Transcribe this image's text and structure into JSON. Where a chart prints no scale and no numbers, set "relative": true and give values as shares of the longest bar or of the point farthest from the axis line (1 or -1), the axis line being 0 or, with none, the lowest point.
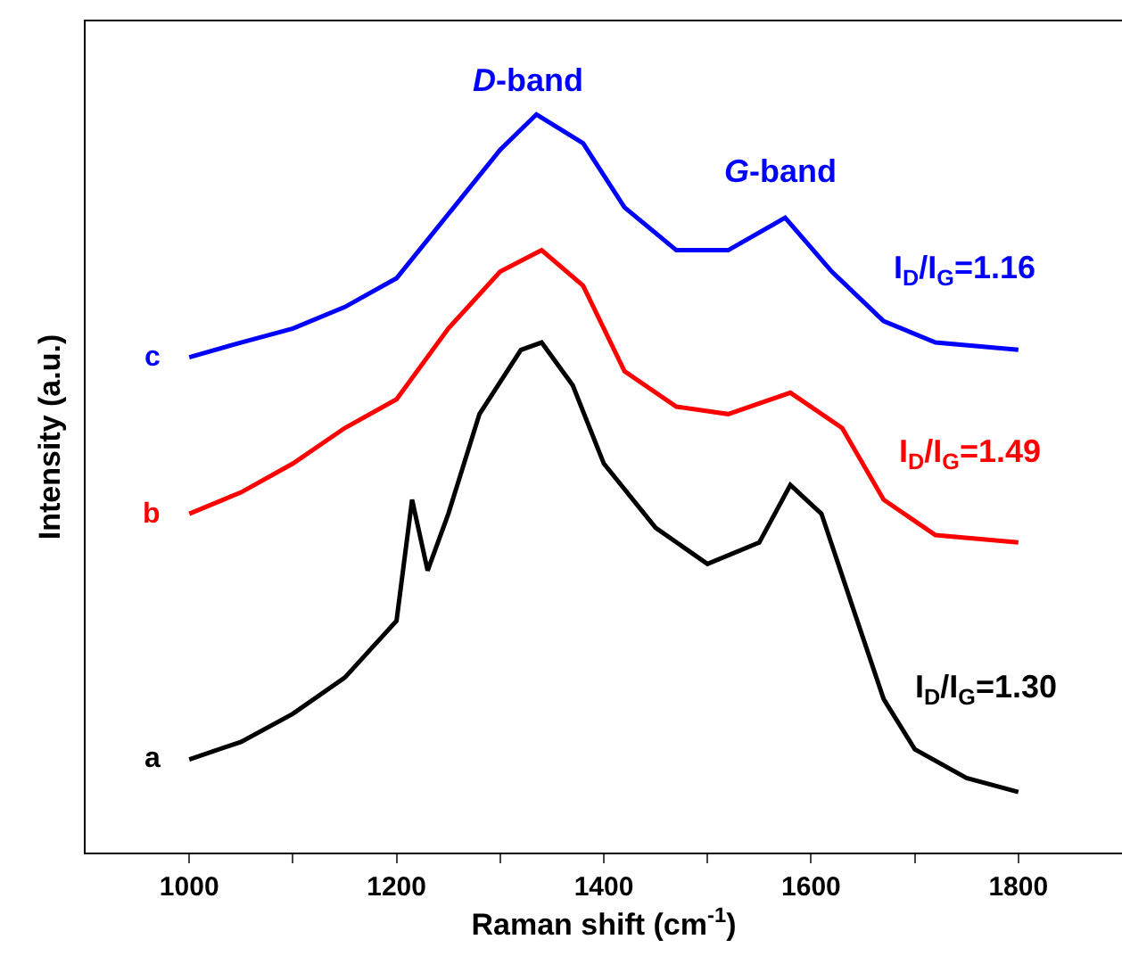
{
  "chart_data": {
    "type": "line",
    "relative": true,
    "xlabel": "Raman shift (cm$^{-1}$)",
    "ylabel": "Intensity (a.u.)",
    "xlim": [
      900,
      1900
    ],
    "xticks": [
      1000,
      {
        "value": 1100,
        "label": null
      },
      1200,
      {
        "value": 1300,
        "label": null
      },
      1400,
      {
        "value": 1500,
        "label": null
      },
      1600,
      {
        "value": 1700,
        "label": null
      },
      1800
    ],
    "legend": false,
    "marker": "none",
    "line_style": "solid",
    "series": [
      {
        "name": "a",
        "color": "#000000",
        "x": [
          1000,
          1050,
          1100,
          1150,
          1200,
          1215,
          1230,
          1250,
          1280,
          1320,
          1340,
          1370,
          1400,
          1450,
          1500,
          1550,
          1580,
          1610,
          1640,
          1670,
          1700,
          1750,
          1800
        ],
        "values": [
          0.126,
          0.15,
          0.188,
          0.237,
          0.314,
          0.478,
          0.382,
          0.459,
          0.594,
          0.681,
          0.691,
          0.633,
          0.527,
          0.44,
          0.391,
          0.42,
          0.498,
          0.459,
          0.333,
          0.208,
          0.14,
          0.101,
          0.082
        ]
      },
      {
        "name": "b",
        "color": "#ff0000",
        "x": [
          1000,
          1050,
          1100,
          1150,
          1200,
          1250,
          1300,
          1340,
          1380,
          1420,
          1470,
          1520,
          1580,
          1630,
          1670,
          1720,
          1800
        ],
        "values": [
          0.459,
          0.488,
          0.527,
          0.575,
          0.614,
          0.71,
          0.787,
          0.816,
          0.768,
          0.652,
          0.604,
          0.594,
          0.623,
          0.575,
          0.478,
          0.43,
          0.42
        ]
      },
      {
        "name": "c",
        "color": "#0000ff",
        "x": [
          1000,
          1050,
          1100,
          1150,
          1200,
          1250,
          1300,
          1335,
          1380,
          1420,
          1470,
          1520,
          1575,
          1620,
          1670,
          1720,
          1800
        ],
        "values": [
          0.671,
          0.691,
          0.71,
          0.739,
          0.778,
          0.865,
          0.952,
          1,
          0.961,
          0.874,
          0.816,
          0.816,
          0.86,
          0.787,
          0.72,
          0.691,
          0.681
        ]
      }
    ],
    "annotations": [
      "D-band",
      "G-band",
      "I$_{D}$/I$_{G}$=1.16",
      "I$_{D}$/I$_{G}$=1.49",
      "I$_{D}$/I$_{G}$=1.30"
    ]
  }
}
